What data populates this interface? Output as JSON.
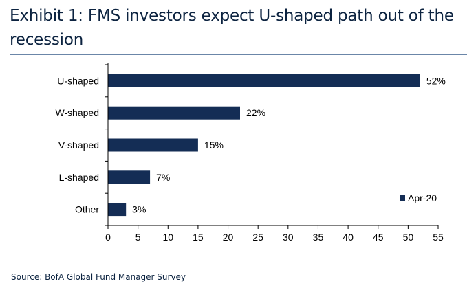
{
  "title": "Exhibit 1: FMS investors expect U-shaped path out of the recession",
  "source": "Source: BofA Global Fund Manager Survey",
  "colors": {
    "bar": "#142d55",
    "title": "#0c2340",
    "rule": "#6b86a8"
  },
  "chart_data": {
    "type": "bar",
    "orientation": "horizontal",
    "categories": [
      "U-shaped",
      "W-shaped",
      "V-shaped",
      "L-shaped",
      "Other"
    ],
    "series": [
      {
        "name": "Apr-20",
        "values": [
          52,
          22,
          15,
          7,
          3
        ]
      }
    ],
    "data_labels": [
      "52%",
      "22%",
      "15%",
      "7%",
      "3%"
    ],
    "xlim": [
      0,
      55
    ],
    "xticks": [
      0,
      5,
      10,
      15,
      20,
      25,
      30,
      35,
      40,
      45,
      50,
      55
    ],
    "xlabel": "",
    "ylabel": "",
    "grid": false,
    "legend": "bottom-right"
  }
}
